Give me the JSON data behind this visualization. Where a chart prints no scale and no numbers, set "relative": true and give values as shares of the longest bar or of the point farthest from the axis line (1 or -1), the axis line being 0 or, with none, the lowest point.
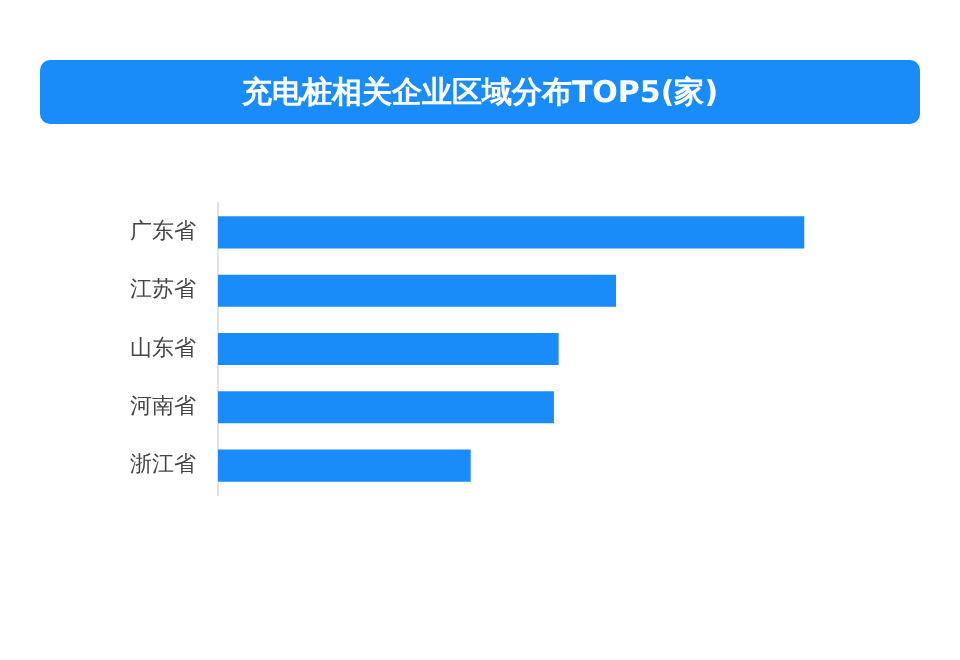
{
  "chart_data": {
    "type": "bar",
    "orientation": "horizontal",
    "relative": true,
    "title": "充电桩相关企业区域分布TOP5(家)",
    "categories": [
      "广东省",
      "江苏省",
      "山东省",
      "河南省",
      "浙江省"
    ],
    "values": [
      1,
      0.679,
      0.581,
      0.573,
      0.431
    ],
    "color": "#1a8cfa",
    "grid": false,
    "legend": false
  }
}
